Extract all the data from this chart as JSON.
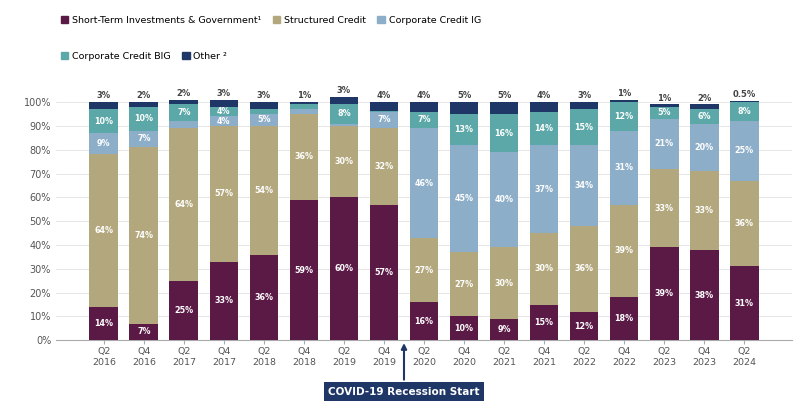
{
  "categories": [
    "Q2\n2016",
    "Q4\n2016",
    "Q2\n2017",
    "Q4\n2017",
    "Q2\n2018",
    "Q4\n2018",
    "Q2\n2019",
    "Q4\n2019",
    "Q2\n2020",
    "Q4\n2020",
    "Q2\n2021",
    "Q4\n2021",
    "Q2\n2022",
    "Q4\n2022",
    "Q2\n2023",
    "Q4\n2023",
    "Q2\n2024"
  ],
  "series": {
    "Short-Term Investments & Government¹": [
      14,
      7,
      25,
      33,
      36,
      59,
      60,
      57,
      16,
      10,
      9,
      15,
      12,
      18,
      39,
      38,
      31
    ],
    "Structured Credit": [
      64,
      74,
      64,
      57,
      54,
      36,
      30,
      32,
      27,
      27,
      30,
      30,
      36,
      39,
      33,
      33,
      36
    ],
    "Corporate Credit IG": [
      9,
      7,
      3,
      4,
      5,
      2,
      1,
      7,
      46,
      45,
      40,
      37,
      34,
      31,
      21,
      20,
      25
    ],
    "Corporate Credit BIG": [
      10,
      10,
      7,
      4,
      2,
      2,
      8,
      0.1,
      7,
      13,
      16,
      14,
      15,
      12,
      5,
      6,
      8
    ],
    "Other ²": [
      3,
      2,
      2,
      3,
      3,
      1,
      3,
      4,
      4,
      5,
      5,
      4,
      3,
      1,
      1,
      2,
      0.5
    ]
  },
  "top_labels": [
    "3%",
    "2%",
    "2%",
    "3%",
    "3%",
    "1%",
    "3%",
    "4%",
    "4%",
    "5%",
    "5%",
    "4%",
    "3%",
    "1%",
    "1%",
    "2%",
    "0.5%"
  ],
  "bar_labels": {
    "Short-Term Investments & Government¹": [
      "14%",
      "7%",
      "25%",
      "33%",
      "36%",
      "59%",
      "60%",
      "57%",
      "16%",
      "10%",
      "9%",
      "15%",
      "12%",
      "18%",
      "39%",
      "38%",
      "31%"
    ],
    "Structured Credit": [
      "64%",
      "74%",
      "64%",
      "57%",
      "54%",
      "36%",
      "30%",
      "32%",
      "27%",
      "27%",
      "30%",
      "30%",
      "36%",
      "39%",
      "33%",
      "33%",
      "36%"
    ],
    "Corporate Credit IG": [
      "9%",
      "7%",
      "3%",
      "4%",
      "5%",
      "2%",
      "1%",
      "7%",
      "46%",
      "45%",
      "40%",
      "37%",
      "34%",
      "31%",
      "21%",
      "20%",
      "25%"
    ],
    "Corporate Credit BIG": [
      "10%",
      "10%",
      "7%",
      "4%",
      "2%",
      "2%",
      "8%",
      "0.1%",
      "7%",
      "13%",
      "16%",
      "14%",
      "15%",
      "12%",
      "5%",
      "6%",
      "8%"
    ],
    "Other ²": [
      "",
      "",
      "",
      "",
      "",
      "",
      "",
      "",
      "",
      "",
      "",
      "",
      "",
      "",
      "",
      "",
      ""
    ]
  },
  "min_label_height": {
    "Short-Term Investments & Government¹": 4,
    "Structured Credit": 4,
    "Corporate Credit IG": 4,
    "Corporate Credit BIG": 3,
    "Other ²": 99
  },
  "colors": {
    "Short-Term Investments & Government¹": "#5b1a46",
    "Structured Credit": "#b3a87d",
    "Corporate Credit IG": "#8daec8",
    "Corporate Credit BIG": "#5ca7a7",
    "Other ²": "#1f3766"
  },
  "yticks": [
    0,
    10,
    20,
    30,
    40,
    50,
    60,
    70,
    80,
    90,
    100
  ],
  "ytick_labels": [
    "0%",
    "10%",
    "20%",
    "30%",
    "40%",
    "50%",
    "60%",
    "70%",
    "80%",
    "90%",
    "100%"
  ],
  "covid_annotation": "COVID-19 Recession Start",
  "covid_bar_index": 7,
  "legend_row1": [
    "Short-Term Investments & Government¹",
    "Structured Credit",
    "Corporate Credit IG"
  ],
  "legend_row2": [
    "Corporate Credit BIG",
    "Other ²"
  ],
  "legend_order": [
    "Short-Term Investments & Government¹",
    "Structured Credit",
    "Corporate Credit IG",
    "Corporate Credit BIG",
    "Other ²"
  ]
}
